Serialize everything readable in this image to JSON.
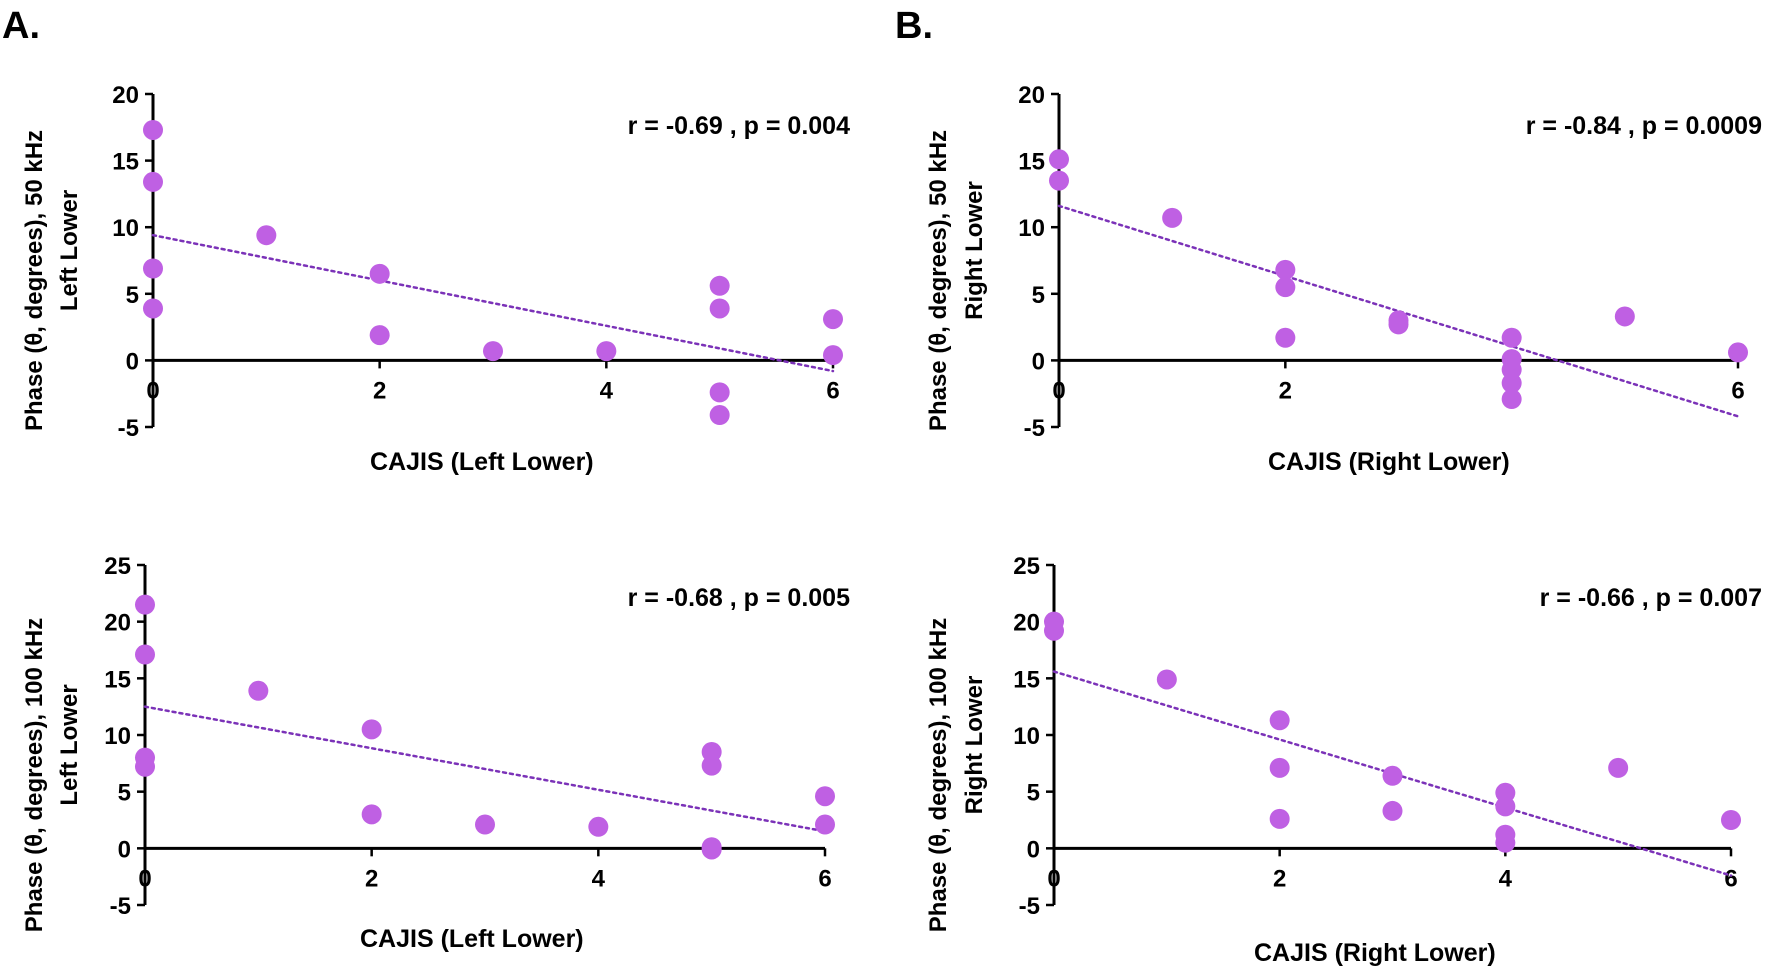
{
  "panel_labels": [
    "A.",
    "B."
  ],
  "colors": {
    "point": "#bf60e3",
    "trend": "#7b32b8",
    "axis": "#000000"
  },
  "chart_data": [
    {
      "type": "scatter",
      "panel": "A.",
      "title": "",
      "ylabel_lines": [
        "Phase (θ, degrees), 50 kHz",
        "Left Lower"
      ],
      "xlabel": "CAJIS (Left Lower)",
      "annotation": "r = -0.69 , p = 0.004",
      "xlim": [
        0,
        6
      ],
      "ylim": [
        -5,
        20
      ],
      "xticks": [
        0,
        2,
        4,
        6
      ],
      "yticks": [
        -5,
        0,
        5,
        10,
        15,
        20
      ],
      "points": [
        [
          0,
          17.3
        ],
        [
          0,
          13.4
        ],
        [
          0,
          6.9
        ],
        [
          0,
          3.9
        ],
        [
          1,
          9.4
        ],
        [
          2,
          6.5
        ],
        [
          2,
          1.9
        ],
        [
          3,
          0.7
        ],
        [
          4,
          0.7
        ],
        [
          5,
          5.6
        ],
        [
          5,
          3.9
        ],
        [
          5,
          -2.4
        ],
        [
          5,
          -4.1
        ],
        [
          6,
          3.1
        ],
        [
          6,
          0.4
        ]
      ],
      "trendline": {
        "x": [
          0,
          6
        ],
        "y": [
          9.4,
          -0.8
        ]
      }
    },
    {
      "type": "scatter",
      "panel": "B.",
      "title": "",
      "ylabel_lines": [
        "Phase (θ, degrees), 50 kHz",
        "Right Lower"
      ],
      "xlabel": "CAJIS (Right Lower)",
      "annotation": "r = -0.84 , p = 0.0009",
      "xlim": [
        0,
        6
      ],
      "ylim": [
        -5,
        20
      ],
      "xticks": [
        0,
        2,
        4,
        6
      ],
      "yticks": [
        -5,
        0,
        5,
        10,
        15,
        20
      ],
      "points": [
        [
          0,
          15.1
        ],
        [
          0,
          13.5
        ],
        [
          1,
          10.7
        ],
        [
          2,
          6.8
        ],
        [
          2,
          5.5
        ],
        [
          2,
          1.7
        ],
        [
          3,
          3.0
        ],
        [
          3,
          2.7
        ],
        [
          4,
          1.7
        ],
        [
          4,
          0.1
        ],
        [
          4,
          -0.7
        ],
        [
          4,
          -1.7
        ],
        [
          4,
          -2.9
        ],
        [
          5,
          3.3
        ],
        [
          6,
          0.6
        ]
      ],
      "trendline": {
        "x": [
          0,
          6
        ],
        "y": [
          11.6,
          -4.2
        ]
      }
    },
    {
      "type": "scatter",
      "panel": "A.",
      "title": "",
      "ylabel_lines": [
        "Phase (θ, degrees), 100 kHz",
        "Left Lower"
      ],
      "xlabel": "CAJIS (Left Lower)",
      "annotation": "r = -0.68 , p = 0.005",
      "xlim": [
        0,
        6
      ],
      "ylim": [
        -5,
        25
      ],
      "xticks": [
        0,
        2,
        4,
        6
      ],
      "yticks": [
        -5,
        0,
        5,
        10,
        15,
        20,
        25
      ],
      "points": [
        [
          0,
          21.5
        ],
        [
          0,
          17.1
        ],
        [
          0,
          8.0
        ],
        [
          0,
          7.2
        ],
        [
          1,
          13.9
        ],
        [
          2,
          10.5
        ],
        [
          2,
          3.0
        ],
        [
          3,
          2.1
        ],
        [
          4,
          1.9
        ],
        [
          5,
          8.5
        ],
        [
          5,
          7.3
        ],
        [
          5,
          0.1
        ],
        [
          5,
          -0.1
        ],
        [
          6,
          4.6
        ],
        [
          6,
          2.1
        ]
      ],
      "trendline": {
        "x": [
          0,
          6
        ],
        "y": [
          12.5,
          1.5
        ]
      }
    },
    {
      "type": "scatter",
      "panel": "B.",
      "title": "",
      "ylabel_lines": [
        "Phase (θ, degrees), 100 kHz",
        "Right Lower"
      ],
      "xlabel": "CAJIS (Right Lower)",
      "annotation": "r = -0.66 , p = 0.007",
      "xlim": [
        0,
        6
      ],
      "ylim": [
        -5,
        25
      ],
      "xticks": [
        0,
        2,
        4,
        6
      ],
      "yticks": [
        -5,
        0,
        5,
        10,
        15,
        20,
        25
      ],
      "points": [
        [
          0,
          20.0
        ],
        [
          0,
          19.2
        ],
        [
          1,
          14.9
        ],
        [
          2,
          11.3
        ],
        [
          2,
          7.1
        ],
        [
          2,
          2.6
        ],
        [
          3,
          6.4
        ],
        [
          3,
          3.3
        ],
        [
          4,
          4.9
        ],
        [
          4,
          3.7
        ],
        [
          4,
          1.2
        ],
        [
          4,
          0.5
        ],
        [
          5,
          7.1
        ],
        [
          6,
          2.5
        ]
      ],
      "trendline": {
        "x": [
          0,
          6
        ],
        "y": [
          15.6,
          -2.4
        ]
      }
    }
  ]
}
